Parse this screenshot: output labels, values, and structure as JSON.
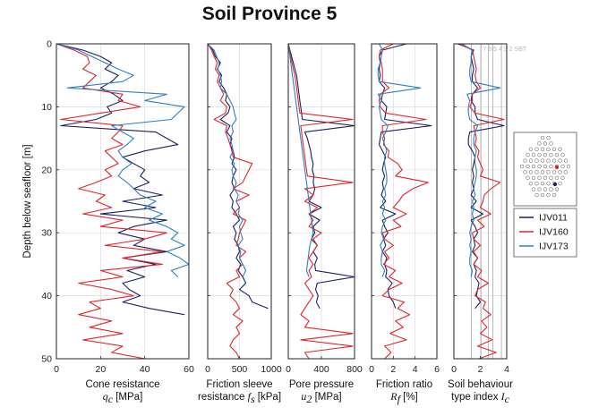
{
  "title": "Soil Province 5",
  "chart_data": {
    "type": "line",
    "ylabel": "Depth below seafloor [m]",
    "ylim": [
      0,
      50
    ],
    "y_inverted": true,
    "yticks": [
      0,
      10,
      20,
      30,
      40,
      50
    ],
    "grid": true,
    "legend_position": "right",
    "series": [
      {
        "name": "IJV011",
        "color": "#1b1f5e"
      },
      {
        "name": "IJV160",
        "color": "#e0262b"
      },
      {
        "name": "IJV173",
        "color": "#2f7fc2"
      }
    ],
    "panels": [
      {
        "id": "qc",
        "xlabel_line1": "Cone resistance",
        "xlabel_sym": "q",
        "xlabel_sub": "c",
        "xlabel_unit": " [MPa]",
        "xlim": [
          0,
          60
        ],
        "xticks": [
          0,
          20,
          40,
          60
        ],
        "depth": [
          0,
          1,
          2,
          3,
          4,
          5,
          6,
          7,
          8,
          9,
          10,
          11,
          12,
          13,
          14,
          15,
          16,
          17,
          18,
          19,
          20,
          21,
          22,
          23,
          24,
          25,
          26,
          27,
          28,
          29,
          30,
          31,
          32,
          33,
          34,
          35,
          36,
          37,
          38,
          39,
          40,
          41,
          42,
          43,
          44,
          45,
          46,
          47,
          48,
          49,
          50
        ],
        "values": {
          "IJV011": [
            0,
            12,
            20,
            25,
            22,
            28,
            25,
            20,
            26,
            30,
            23,
            25,
            18,
            2,
            45,
            50,
            55,
            40,
            30,
            35,
            40,
            38,
            42,
            35,
            48,
            30,
            45,
            20,
            50,
            35,
            28,
            40,
            35,
            50,
            30,
            45,
            32,
            40,
            30,
            33,
            38,
            30,
            42,
            58,
            null,
            null,
            null,
            null,
            null,
            null,
            null
          ],
          "IJV160": [
            0,
            8,
            14,
            15,
            12,
            18,
            15,
            12,
            30,
            28,
            38,
            20,
            2,
            30,
            28,
            25,
            30,
            22,
            25,
            28,
            22,
            25,
            18,
            10,
            22,
            18,
            25,
            12,
            30,
            20,
            50,
            40,
            22,
            48,
            30,
            48,
            20,
            30,
            10,
            25,
            35,
            15,
            20,
            10,
            25,
            15,
            30,
            12,
            30,
            25,
            40
          ],
          "IJV173": [
            0,
            10,
            16,
            22,
            28,
            35,
            30,
            5,
            50,
            40,
            58,
            55,
            52,
            25,
            30,
            35,
            32,
            28,
            30,
            34,
            30,
            28,
            32,
            35,
            38,
            45,
            40,
            48,
            42,
            50,
            55,
            52,
            58,
            50,
            56,
            60,
            52,
            55,
            null,
            null,
            null,
            null,
            null,
            null,
            null,
            null,
            null,
            null,
            null,
            null,
            null
          ]
        }
      },
      {
        "id": "fs",
        "xlabel_line1": "Friction sleeve",
        "xlabel_pre": "resistance ",
        "xlabel_sym": "f",
        "xlabel_sub": "s",
        "xlabel_unit": " [kPa]",
        "xlim": [
          0,
          1000
        ],
        "xticks": [
          0,
          500,
          1000
        ],
        "depth": [
          0,
          1,
          2,
          3,
          4,
          5,
          6,
          7,
          8,
          9,
          10,
          11,
          12,
          13,
          14,
          15,
          16,
          17,
          18,
          19,
          20,
          21,
          22,
          23,
          24,
          25,
          26,
          27,
          28,
          29,
          30,
          31,
          32,
          33,
          34,
          35,
          36,
          37,
          38,
          39,
          40,
          41,
          42,
          43,
          44,
          45,
          46,
          47,
          48,
          49,
          50
        ],
        "values": {
          "IJV011": [
            0,
            80,
            120,
            200,
            150,
            220,
            180,
            250,
            300,
            280,
            350,
            320,
            200,
            350,
            300,
            380,
            350,
            400,
            420,
            380,
            450,
            400,
            380,
            420,
            350,
            400,
            380,
            450,
            500,
            400,
            450,
            420,
            480,
            500,
            450,
            520,
            480,
            550,
            600,
            500,
            650,
            700,
            950,
            null,
            null,
            null,
            null,
            null,
            null,
            null,
            null
          ],
          "IJV160": [
            0,
            60,
            100,
            150,
            120,
            180,
            150,
            200,
            250,
            200,
            300,
            280,
            100,
            300,
            280,
            320,
            350,
            380,
            400,
            700,
            650,
            600,
            550,
            400,
            650,
            450,
            500,
            400,
            600,
            550,
            500,
            480,
            450,
            600,
            500,
            550,
            450,
            500,
            300,
            400,
            350,
            450,
            500,
            400,
            550,
            450,
            500,
            400,
            350,
            450,
            500
          ],
          "IJV173": [
            0,
            100,
            140,
            180,
            160,
            200,
            220,
            200,
            300,
            350,
            400,
            420,
            450,
            380,
            400,
            350,
            380,
            400,
            350,
            420,
            380,
            400,
            450,
            420,
            480,
            450,
            500,
            480,
            550,
            500,
            520,
            550,
            480,
            520,
            500,
            550,
            600,
            550,
            null,
            null,
            null,
            null,
            null,
            null,
            null,
            null,
            null,
            null,
            null,
            null,
            null
          ]
        }
      },
      {
        "id": "u2",
        "xlabel_line1": "Pore pressure",
        "xlabel_sym": "u",
        "xlabel_sub": "2",
        "xlabel_unit": " [MPa]",
        "xlim": [
          0,
          800
        ],
        "xticks": [
          0,
          400,
          800
        ],
        "depth": [
          0,
          1,
          2,
          3,
          4,
          5,
          6,
          7,
          8,
          9,
          10,
          11,
          12,
          13,
          14,
          15,
          16,
          17,
          18,
          19,
          20,
          21,
          22,
          23,
          24,
          25,
          26,
          27,
          28,
          29,
          30,
          31,
          32,
          33,
          34,
          35,
          36,
          37,
          38,
          39,
          40,
          41,
          42,
          43,
          44,
          45,
          46,
          47,
          48,
          49,
          50
        ],
        "values": {
          "IJV011": [
            0,
            20,
            40,
            60,
            80,
            100,
            110,
            120,
            130,
            140,
            150,
            160,
            170,
            800,
            200,
            230,
            250,
            270,
            280,
            300,
            290,
            310,
            300,
            320,
            300,
            250,
            400,
            250,
            380,
            300,
            320,
            280,
            350,
            300,
            350,
            320,
            330,
            800,
            350,
            330,
            360,
            340,
            380,
            null,
            null,
            null,
            null,
            null,
            null,
            null,
            null
          ],
          "IJV160": [
            0,
            15,
            30,
            45,
            60,
            80,
            90,
            100,
            110,
            120,
            130,
            140,
            780,
            150,
            160,
            170,
            180,
            190,
            200,
            210,
            220,
            230,
            780,
            200,
            300,
            200,
            350,
            250,
            300,
            250,
            400,
            300,
            350,
            300,
            250,
            300,
            250,
            280,
            200,
            250,
            300,
            250,
            200,
            150,
            250,
            200,
            780,
            150,
            780,
            200,
            250
          ],
          "IJV173": [
            0,
            10,
            20,
            30,
            40,
            50,
            60,
            70,
            80,
            90,
            100,
            110,
            120,
            130,
            140,
            150,
            160,
            170,
            180,
            190,
            200,
            210,
            220,
            230,
            240,
            250,
            260,
            270,
            280,
            290,
            300,
            280,
            260,
            250,
            240,
            230,
            220,
            250,
            null,
            null,
            null,
            null,
            null,
            null,
            null,
            null,
            null,
            null,
            null,
            null,
            null
          ]
        }
      },
      {
        "id": "rf",
        "xlabel_line1": "Friction ratio",
        "xlabel_sym": "R",
        "xlabel_sub": "f",
        "xlabel_unit": " [%]",
        "xlim": [
          0,
          6
        ],
        "xticks": [
          0,
          2,
          4,
          6
        ],
        "depth": [
          0,
          1,
          2,
          3,
          4,
          5,
          6,
          7,
          8,
          9,
          10,
          11,
          12,
          13,
          14,
          15,
          16,
          17,
          18,
          19,
          20,
          21,
          22,
          23,
          24,
          25,
          26,
          27,
          28,
          29,
          30,
          31,
          32,
          33,
          34,
          35,
          36,
          37,
          38,
          39,
          40,
          41,
          42,
          43,
          44,
          45,
          46,
          47,
          48,
          49,
          50
        ],
        "values": {
          "IJV011": [
            3.2,
            1.0,
            0.7,
            0.8,
            0.7,
            0.8,
            0.7,
            1.2,
            1.0,
            0.9,
            1.4,
            1.3,
            1.2,
            5.5,
            0.9,
            0.8,
            0.7,
            1.0,
            1.3,
            1.1,
            1.0,
            1.2,
            1.0,
            1.1,
            0.9,
            1.3,
            0.8,
            2.2,
            1.0,
            1.2,
            1.5,
            1.1,
            1.3,
            1.0,
            1.4,
            1.2,
            1.4,
            1.3,
            1.9,
            1.5,
            1.6,
            2.0,
            2.2,
            null,
            null,
            null,
            null,
            null,
            null,
            null,
            null
          ],
          "IJV160": [
            2.0,
            0.8,
            0.7,
            0.9,
            1.0,
            1.0,
            1.0,
            1.6,
            0.8,
            0.7,
            0.8,
            1.3,
            5.0,
            1.0,
            1.0,
            1.2,
            1.1,
            1.6,
            1.5,
            2.4,
            2.8,
            2.2,
            5.2,
            3.8,
            2.9,
            2.5,
            2.0,
            3.2,
            2.0,
            2.7,
            1.0,
            1.2,
            2.0,
            1.2,
            1.6,
            1.1,
            2.2,
            1.6,
            2.8,
            1.6,
            1.0,
            3.0,
            2.4,
            3.5,
            2.2,
            2.9,
            1.7,
            3.2,
            1.2,
            1.8,
            1.2
          ],
          "IJV173": [
            0.7,
            1.0,
            0.9,
            0.8,
            0.6,
            0.6,
            0.7,
            4.5,
            0.6,
            0.9,
            0.7,
            0.8,
            0.9,
            1.5,
            1.3,
            1.0,
            1.2,
            1.4,
            1.2,
            1.2,
            1.3,
            1.4,
            1.4,
            1.2,
            1.3,
            1.0,
            1.2,
            1.0,
            1.3,
            1.0,
            0.9,
            1.1,
            0.8,
            1.0,
            0.9,
            0.9,
            1.2,
            1.0,
            null,
            null,
            null,
            null,
            null,
            null,
            null,
            null,
            null,
            null,
            null,
            null,
            null
          ]
        }
      },
      {
        "id": "ic",
        "xlabel_line1": "Soil behaviour",
        "xlabel_pre": "type index ",
        "xlabel_sym": "I",
        "xlabel_sub": "c",
        "xlabel_unit": "",
        "xlim": [
          0,
          4
        ],
        "xticks": [
          0,
          2,
          4
        ],
        "zone_boundaries": [
          1.31,
          2.05,
          2.6,
          2.95,
          3.6
        ],
        "zone_label": "7 6 5 4 3 2 SBT",
        "depth": [
          0,
          1,
          2,
          3,
          4,
          5,
          6,
          7,
          8,
          9,
          10,
          11,
          12,
          13,
          14,
          15,
          16,
          17,
          18,
          19,
          20,
          21,
          22,
          23,
          24,
          25,
          26,
          27,
          28,
          29,
          30,
          31,
          32,
          33,
          34,
          35,
          36,
          37,
          38,
          39,
          40,
          41,
          42,
          43,
          44,
          45,
          46,
          47,
          48,
          49,
          50
        ],
        "values": {
          "IJV011": [
            0.3,
            1.5,
            1.3,
            1.4,
            1.5,
            1.4,
            1.4,
            1.8,
            1.4,
            1.3,
            1.6,
            1.6,
            1.8,
            3.8,
            1.2,
            1.1,
            1.1,
            1.4,
            1.6,
            1.5,
            1.4,
            1.5,
            1.4,
            1.5,
            1.3,
            1.7,
            1.3,
            2.2,
            1.3,
            1.6,
            1.8,
            1.5,
            1.6,
            1.4,
            1.8,
            1.5,
            1.7,
            1.6,
            1.9,
            1.8,
            1.7,
            2.0,
            1.6,
            null,
            null,
            null,
            null,
            null,
            null,
            null,
            null
          ],
          "IJV160": [
            0.4,
            1.4,
            1.5,
            1.6,
            1.7,
            1.6,
            1.7,
            2.0,
            1.4,
            1.4,
            1.2,
            1.6,
            3.8,
            1.5,
            1.6,
            1.7,
            1.6,
            1.9,
            1.8,
            2.0,
            2.2,
            2.0,
            3.5,
            2.8,
            2.3,
            2.2,
            2.0,
            2.8,
            1.8,
            2.3,
            1.4,
            1.5,
            2.0,
            1.5,
            1.8,
            1.5,
            2.1,
            1.8,
            2.6,
            1.8,
            1.6,
            2.4,
            2.2,
            2.8,
            2.1,
            2.5,
            2.0,
            2.9,
            1.8,
            3.2,
            1.9
          ],
          "IJV173": [
            0.6,
            1.4,
            1.3,
            1.3,
            1.2,
            1.2,
            1.3,
            3.5,
            1.0,
            1.2,
            1.1,
            1.1,
            1.2,
            1.8,
            1.6,
            1.5,
            1.5,
            1.7,
            1.6,
            1.6,
            1.7,
            1.7,
            1.6,
            1.5,
            1.6,
            1.4,
            1.5,
            1.4,
            1.5,
            1.3,
            1.2,
            1.3,
            1.2,
            1.3,
            1.2,
            1.2,
            1.4,
            1.3,
            null,
            null,
            null,
            null,
            null,
            null,
            null,
            null,
            null,
            null,
            null,
            null,
            null
          ]
        }
      }
    ]
  }
}
